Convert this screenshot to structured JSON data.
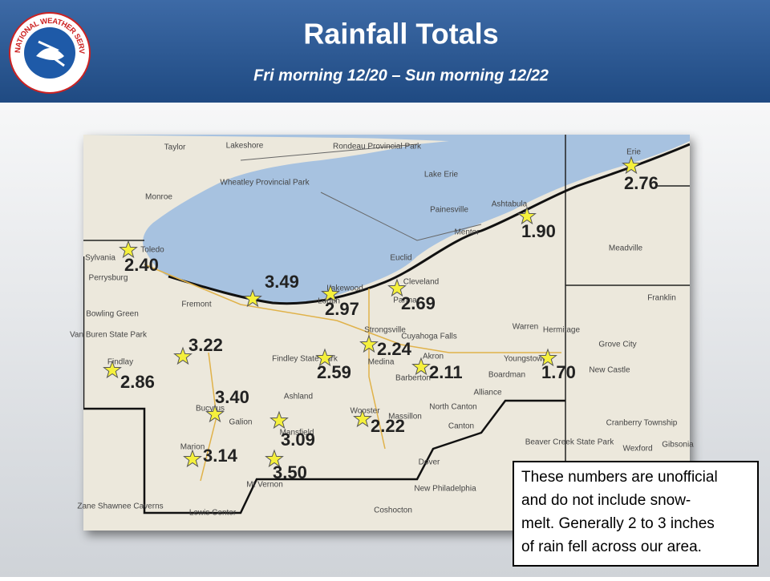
{
  "logo": {
    "text": "NATIONAL WEATHER SERVICE"
  },
  "header": {
    "title": "Rainfall Totals",
    "subtitle": "Fri morning 12/20 – Sun morning 12/22"
  },
  "map": {
    "places": [
      "Lake Erie",
      "Rondeau Provincial Park",
      "Wheatley Provincial Park",
      "Lakeshore",
      "Taylor",
      "Monroe",
      "Sylvania",
      "Toledo",
      "Perrysburg",
      "Bowling Green",
      "Fremont",
      "Van Buren State Park",
      "Findlay",
      "Lakewood",
      "Lorain",
      "Cleveland",
      "Parma",
      "Strongsville",
      "Cuyahoga Falls",
      "Medina",
      "Akron",
      "Barberton",
      "North Canton",
      "Canton",
      "Massillon",
      "Wooster",
      "Findley State Park",
      "Ashland",
      "Mansfield",
      "Galion",
      "Bucyrus",
      "Marion",
      "Mt Vernon",
      "Coshocton",
      "Dover",
      "New Philadelphia",
      "Alliance",
      "Warren",
      "Youngstown",
      "Boardman",
      "Ashtabula",
      "Painesville",
      "Mentor",
      "Euclid",
      "Erie",
      "Meadville",
      "Franklin",
      "Hermitage",
      "Grove City",
      "New Castle",
      "Beaver Creek State Park",
      "Cranberry Township",
      "Wexford",
      "Gibsonia",
      "Zane Shawnee Caverns",
      "Lewis Center"
    ],
    "totals": [
      "2.76",
      "1.90",
      "2.40",
      "3.49",
      "2.97",
      "2.69",
      "2.24",
      "2.11",
      "1.70",
      "3.22",
      "2.86",
      "2.59",
      "3.40",
      "3.09",
      "2.22",
      "3.14",
      "3.50"
    ]
  },
  "note": {
    "lines": [
      "These numbers are unofficial",
      "and do not include snow-",
      "melt.  Generally 2 to 3 inches",
      "of rain fell across our area."
    ]
  }
}
